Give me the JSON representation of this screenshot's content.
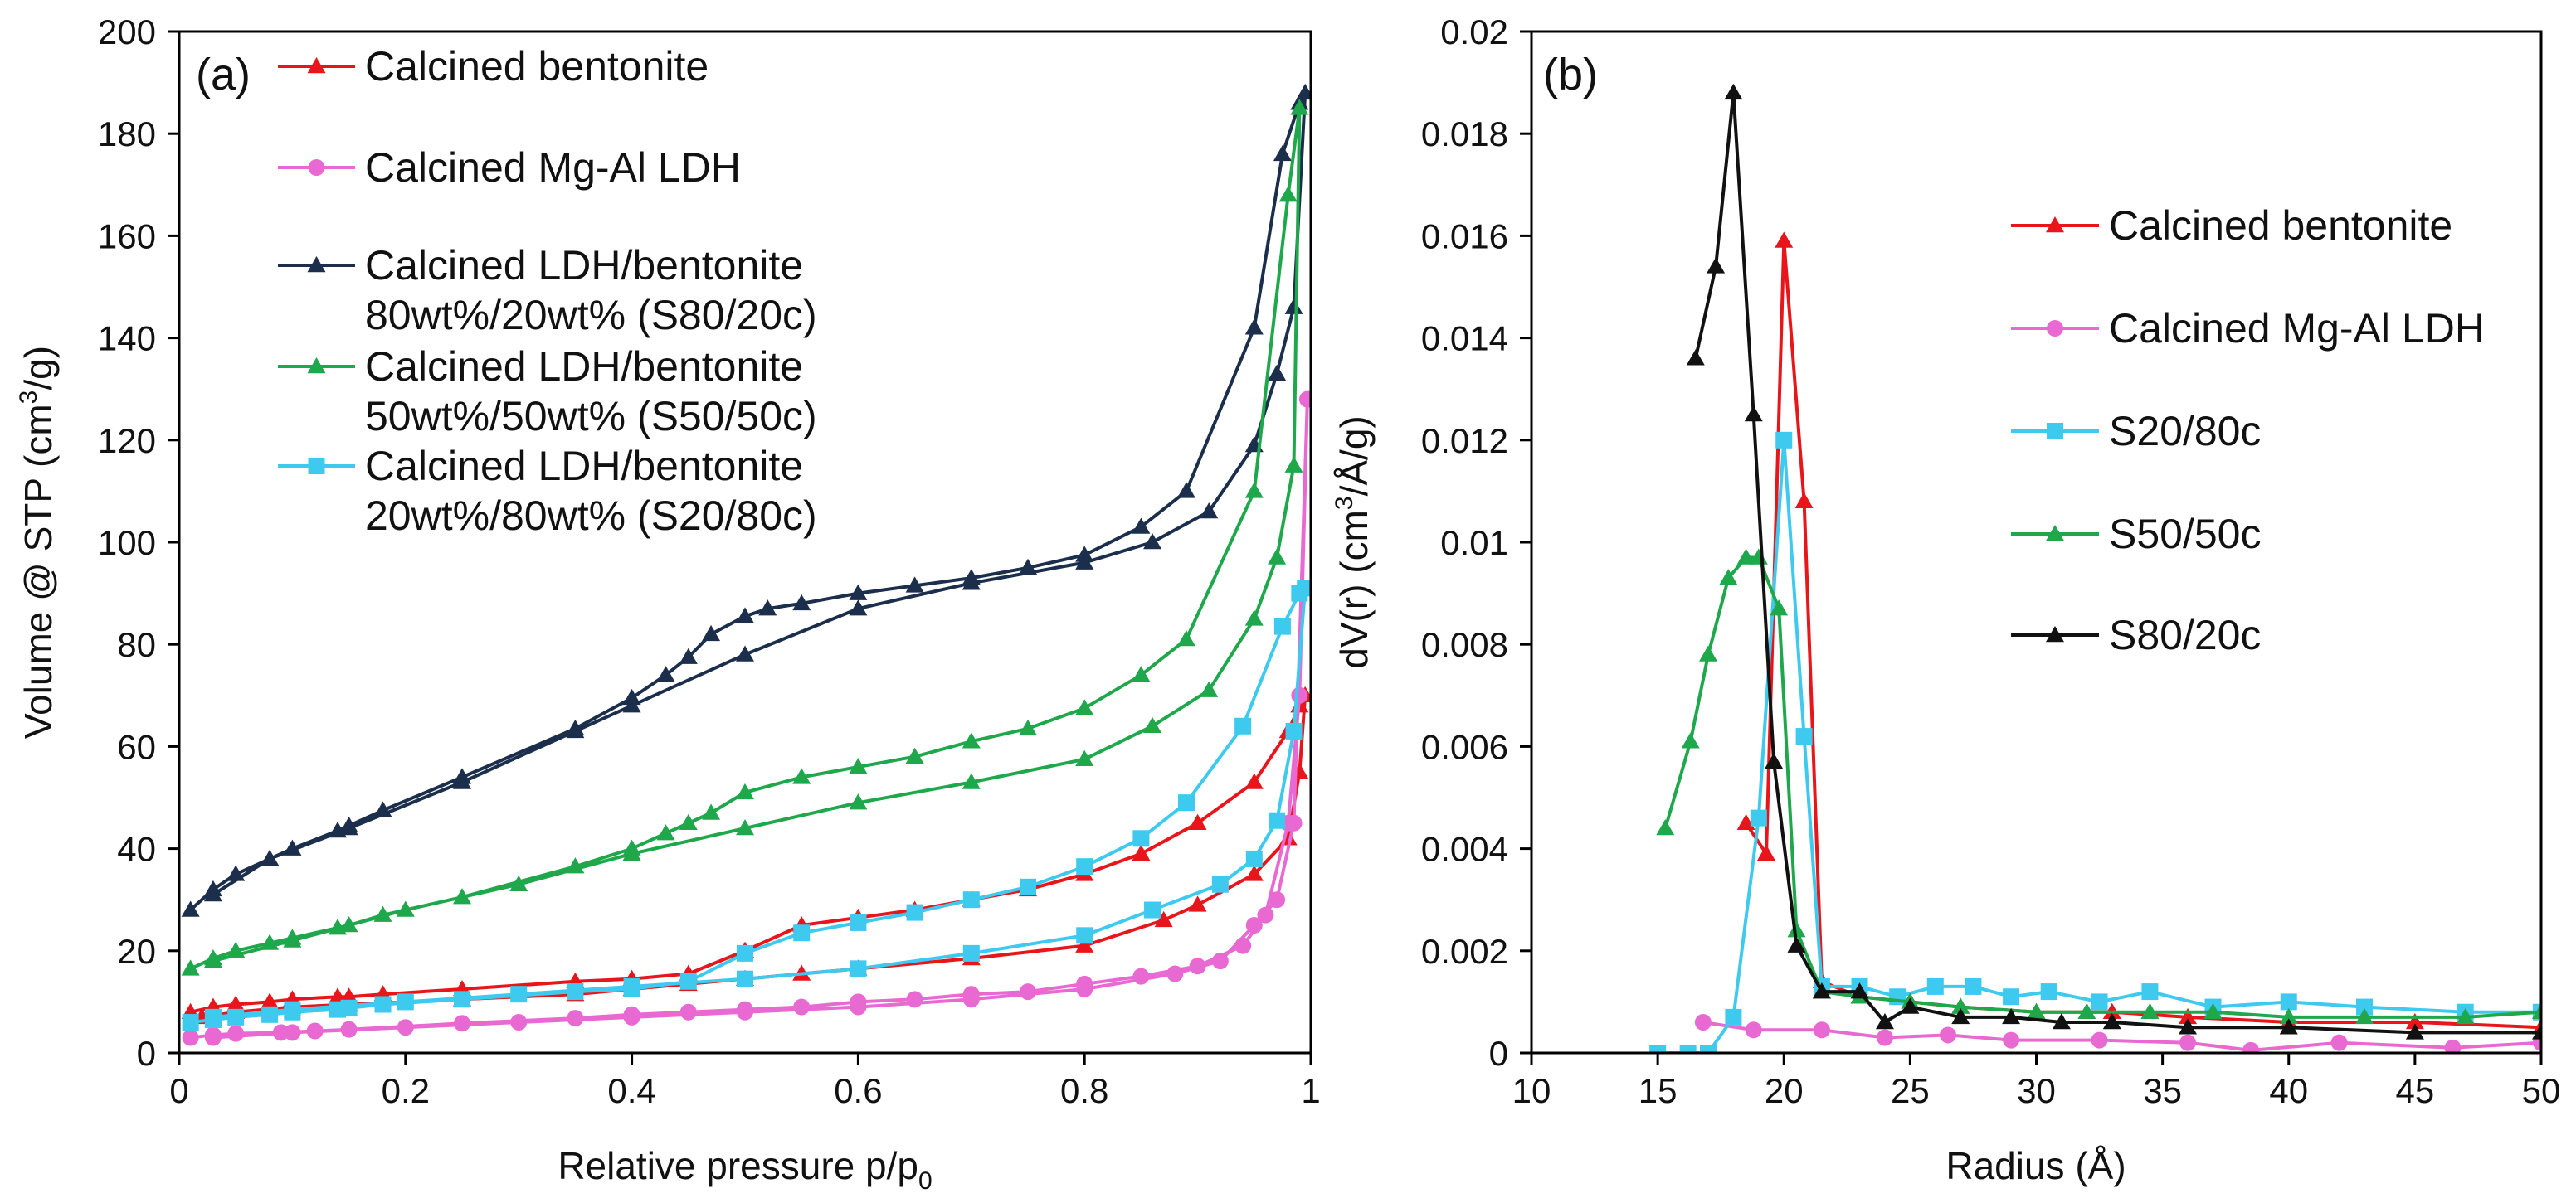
{
  "chart_data": [
    {
      "type": "line",
      "panel_label": "(a)",
      "xlabel_main": "Relative pressure p/p",
      "xlabel_sub": "0",
      "ylabel_main": "Volume @ STP (cm",
      "ylabel_sup": "3",
      "ylabel_end": "/g)",
      "xlim": [
        0,
        1
      ],
      "ylim": [
        0,
        200
      ],
      "xticks": [
        0,
        0.2,
        0.4,
        0.6,
        0.8,
        1
      ],
      "xtick_labels": [
        "0",
        "0.2",
        "0.4",
        "0.6",
        "0.8",
        "1"
      ],
      "yticks": [
        0,
        20,
        40,
        60,
        80,
        100,
        120,
        140,
        160,
        180,
        200
      ],
      "ytick_labels": [
        "0",
        "20",
        "40",
        "60",
        "80",
        "100",
        "120",
        "140",
        "160",
        "180",
        "200"
      ],
      "grid": false,
      "legend_position": "top-left",
      "series": [
        {
          "name": "Calcined bentonite",
          "legend_lines": [
            "Calcined bentonite"
          ],
          "color": "#e8161b",
          "marker": "triangle",
          "x": [
            0.01,
            0.03,
            0.05,
            0.08,
            0.1,
            0.14,
            0.15,
            0.18,
            0.25,
            0.35,
            0.4,
            0.45,
            0.5,
            0.55,
            0.6,
            0.65,
            0.7,
            0.75,
            0.8,
            0.85,
            0.9,
            0.95,
            0.98,
            0.99,
            0.995,
            0.99,
            0.98,
            0.95,
            0.9,
            0.87,
            0.8,
            0.7,
            0.6,
            0.55,
            0.5,
            0.45,
            0.4,
            0.35,
            0.25,
            0.15,
            0.1,
            0.05,
            0.02
          ],
          "y": [
            8,
            9,
            9.5,
            10,
            10.5,
            11,
            11,
            11.5,
            12.5,
            14,
            14.5,
            15.5,
            20,
            25,
            26.5,
            28,
            30,
            32,
            35,
            39,
            45,
            53,
            63,
            68,
            70,
            55,
            42,
            35,
            29,
            26,
            21,
            18.5,
            16.5,
            15.5,
            14.5,
            13.5,
            12.5,
            11.5,
            10.5,
            9.5,
            9,
            8,
            7
          ]
        },
        {
          "name": "Calcined Mg-Al LDH",
          "legend_lines": [
            "Calcined Mg-Al LDH"
          ],
          "color": "#e969d3",
          "marker": "circle",
          "x": [
            0.01,
            0.03,
            0.05,
            0.09,
            0.12,
            0.15,
            0.25,
            0.35,
            0.4,
            0.45,
            0.5,
            0.55,
            0.6,
            0.65,
            0.7,
            0.75,
            0.8,
            0.85,
            0.9,
            0.94,
            0.96,
            0.98,
            0.99,
            0.997,
            0.985,
            0.97,
            0.95,
            0.92,
            0.88,
            0.8,
            0.7,
            0.6,
            0.5,
            0.4,
            0.3,
            0.2,
            0.1,
            0.03
          ],
          "y": [
            3,
            3.5,
            3.8,
            4,
            4.3,
            4.6,
            5.8,
            6.8,
            7.5,
            8,
            8.5,
            9,
            10,
            10.5,
            11.5,
            12,
            13.5,
            15,
            17,
            21,
            27,
            45,
            70,
            128,
            45,
            30,
            25,
            18,
            15.5,
            12.5,
            10.5,
            9,
            8,
            7,
            6,
            5,
            4,
            3
          ]
        },
        {
          "name": "Calcined LDH/bentonite 80wt%/20wt% (S80/20c)",
          "legend_lines": [
            "Calcined LDH/bentonite",
            "80wt%/20wt% (S80/20c)"
          ],
          "color": "#1b2e4b",
          "marker": "triangle",
          "x": [
            0.01,
            0.03,
            0.05,
            0.08,
            0.1,
            0.14,
            0.15,
            0.18,
            0.25,
            0.35,
            0.4,
            0.43,
            0.45,
            0.47,
            0.5,
            0.52,
            0.55,
            0.6,
            0.65,
            0.7,
            0.75,
            0.8,
            0.85,
            0.89,
            0.95,
            0.975,
            0.99,
            0.995,
            0.985,
            0.97,
            0.95,
            0.91,
            0.86,
            0.8,
            0.7,
            0.6,
            0.5,
            0.4,
            0.35,
            0.25,
            0.15,
            0.08,
            0.03
          ],
          "y": [
            28,
            32,
            35,
            38,
            40,
            43.5,
            44.5,
            47.5,
            54,
            63.5,
            69.5,
            74,
            77.5,
            82,
            85.5,
            87,
            88,
            90,
            91.5,
            93,
            95,
            97.5,
            103,
            110,
            142,
            176,
            186,
            188,
            146,
            133,
            119,
            106,
            100,
            96,
            92,
            87,
            78,
            68,
            63,
            53,
            44,
            38,
            31
          ]
        },
        {
          "name": "Calcined LDH/bentonite 50wt%/50wt% (S50/50c)",
          "legend_lines": [
            "Calcined LDH/bentonite",
            "50wt%/50wt% (S50/50c)"
          ],
          "color": "#1fa84b",
          "marker": "triangle",
          "x": [
            0.01,
            0.03,
            0.05,
            0.08,
            0.1,
            0.14,
            0.15,
            0.18,
            0.25,
            0.35,
            0.4,
            0.43,
            0.45,
            0.47,
            0.5,
            0.55,
            0.6,
            0.65,
            0.7,
            0.75,
            0.8,
            0.85,
            0.89,
            0.95,
            0.98,
            0.99,
            0.985,
            0.97,
            0.95,
            0.91,
            0.86,
            0.8,
            0.7,
            0.6,
            0.5,
            0.4,
            0.3,
            0.2,
            0.1,
            0.03
          ],
          "y": [
            16.5,
            18.5,
            20,
            21.5,
            22.5,
            24.5,
            25,
            27,
            30.5,
            36.5,
            40,
            43,
            45,
            47,
            51,
            54,
            56,
            58,
            61,
            63.5,
            67.5,
            74,
            81,
            110,
            168,
            185,
            115,
            97,
            85,
            71,
            64,
            57.5,
            53,
            49,
            44,
            39,
            33,
            28,
            22,
            18
          ]
        },
        {
          "name": "Calcined LDH/bentonite 20wt%/80wt% (S20/80c)",
          "legend_lines": [
            "Calcined LDH/bentonite",
            "20wt%/80wt% (S20/80c)"
          ],
          "color": "#3ec9ef",
          "marker": "square",
          "x": [
            0.01,
            0.03,
            0.05,
            0.08,
            0.1,
            0.14,
            0.15,
            0.18,
            0.25,
            0.35,
            0.4,
            0.45,
            0.5,
            0.55,
            0.6,
            0.65,
            0.7,
            0.75,
            0.8,
            0.85,
            0.89,
            0.94,
            0.975,
            0.99,
            0.995,
            0.985,
            0.97,
            0.95,
            0.92,
            0.86,
            0.8,
            0.7,
            0.6,
            0.5,
            0.4,
            0.3,
            0.2,
            0.1,
            0.03
          ],
          "y": [
            6,
            6.5,
            7,
            7.5,
            8,
            8.5,
            8.8,
            9.5,
            10.5,
            12,
            12.5,
            14,
            19.5,
            23.5,
            25.5,
            27.5,
            30,
            32.5,
            36.5,
            42,
            49,
            64,
            83.5,
            90,
            91,
            63,
            45.5,
            38,
            33,
            28,
            23,
            19.5,
            16.5,
            14.5,
            13,
            11.5,
            10,
            8.5,
            7
          ]
        }
      ]
    },
    {
      "type": "line",
      "panel_label": "(b)",
      "xlabel": "Radius (Å)",
      "ylabel_main": "dV(r) (cm",
      "ylabel_sup": "3",
      "ylabel_end": "/Å/g)",
      "xlim": [
        10,
        50
      ],
      "ylim": [
        0,
        0.02
      ],
      "xticks": [
        10,
        15,
        20,
        25,
        30,
        35,
        40,
        45,
        50
      ],
      "xtick_labels": [
        "10",
        "15",
        "20",
        "25",
        "30",
        "35",
        "40",
        "45",
        "50"
      ],
      "yticks": [
        0,
        0.002,
        0.004,
        0.006,
        0.008,
        0.01,
        0.012,
        0.014,
        0.016,
        0.018,
        0.02
      ],
      "ytick_labels": [
        "0",
        "0.002",
        "0.004",
        "0.006",
        "0.008",
        "0.01",
        "0.012",
        "0.014",
        "0.016",
        "0.018",
        "0.02"
      ],
      "grid": false,
      "legend_position": "right",
      "series": [
        {
          "name": "Calcined bentonite",
          "color": "#e8161b",
          "marker": "triangle",
          "x": [
            18.5,
            19.3,
            20.0,
            20.8,
            21.5,
            23,
            25,
            27,
            30,
            33,
            36,
            40,
            45,
            50
          ],
          "y": [
            0.0045,
            0.0039,
            0.0159,
            0.0108,
            0.0014,
            0.0011,
            0.001,
            0.0009,
            0.0008,
            0.0008,
            0.0007,
            0.0006,
            0.0006,
            0.0005
          ]
        },
        {
          "name": "Calcined Mg-Al LDH",
          "color": "#e969d3",
          "marker": "circle",
          "x": [
            16.8,
            18.8,
            21.5,
            24,
            26.5,
            29,
            32.5,
            36,
            38.5,
            42,
            46.5,
            50
          ],
          "y": [
            0.0006,
            0.00045,
            0.00045,
            0.0003,
            0.00035,
            0.00025,
            0.00025,
            0.0002,
            5e-05,
            0.0002,
            0.0001,
            0.0002
          ]
        },
        {
          "name": "S20/80c",
          "color": "#3ec9ef",
          "marker": "square",
          "x": [
            15,
            16.2,
            17.0,
            18.0,
            19.0,
            20.0,
            20.8,
            21.5,
            23,
            24.5,
            26,
            27.5,
            29,
            30.5,
            32.5,
            34.5,
            37,
            40,
            43,
            47,
            50
          ],
          "y": [
            0,
            0,
            0,
            0.0007,
            0.0046,
            0.012,
            0.0062,
            0.0013,
            0.0013,
            0.0011,
            0.0013,
            0.0013,
            0.0011,
            0.0012,
            0.001,
            0.0012,
            0.0009,
            0.001,
            0.0009,
            0.0008,
            0.0008
          ]
        },
        {
          "name": "S50/50c",
          "color": "#1fa84b",
          "marker": "triangle",
          "x": [
            15.3,
            16.3,
            17.0,
            17.8,
            18.5,
            19.0,
            19.8,
            20.5,
            21.5,
            23,
            25,
            27,
            30,
            32,
            34.5,
            37,
            40,
            43,
            47,
            50
          ],
          "y": [
            0.0044,
            0.0061,
            0.0078,
            0.0093,
            0.0097,
            0.0097,
            0.0087,
            0.0024,
            0.0012,
            0.0011,
            0.001,
            0.0009,
            0.0008,
            0.0008,
            0.0008,
            0.0008,
            0.0007,
            0.0007,
            0.0007,
            0.0008
          ]
        },
        {
          "name": "S80/20c",
          "color": "#111111",
          "marker": "triangle",
          "x": [
            16.5,
            17.3,
            18.0,
            18.8,
            19.6,
            20.5,
            21.5,
            23,
            24,
            25,
            27,
            29,
            31,
            33,
            36,
            40,
            45,
            50
          ],
          "y": [
            0.0136,
            0.0154,
            0.0188,
            0.0125,
            0.0057,
            0.0021,
            0.0012,
            0.0012,
            0.0006,
            0.0009,
            0.0007,
            0.0007,
            0.0006,
            0.0006,
            0.0005,
            0.0005,
            0.0004,
            0.0004
          ]
        }
      ]
    }
  ]
}
